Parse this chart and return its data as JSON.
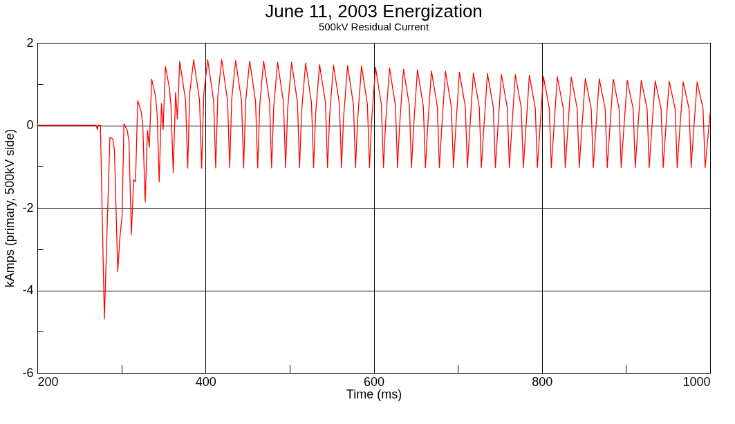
{
  "chart_data": {
    "type": "line",
    "title": "June 11, 2003 Energization",
    "subtitle": "500kV Residual Current",
    "xlabel": "Time (ms)",
    "ylabel": "kAmps (primary, 500kV side)",
    "xlim": [
      200,
      1000
    ],
    "xticks": [
      200,
      {
        "value": 300,
        "label": null
      },
      400,
      {
        "value": 500,
        "label": null
      },
      600,
      {
        "value": 700,
        "label": null
      },
      800,
      {
        "value": 900,
        "label": null
      },
      1000
    ],
    "ylim": [
      -6,
      2
    ],
    "yticks": [
      -6,
      {
        "value": -5,
        "label": null
      },
      -4,
      {
        "value": -3,
        "label": null
      },
      -2,
      {
        "value": -1,
        "label": null
      },
      0,
      {
        "value": 1,
        "label": null
      },
      2
    ],
    "grid": true,
    "line_style": "solid",
    "series": [
      {
        "color": "#ff0000",
        "x": [
          200,
          270,
          271.2,
          272.5,
          275,
          279.7,
          286.3,
          289.8,
          291.7,
          295.6,
          298.1,
          300.8,
          303.0,
          306.9,
          309.0,
          311.8,
          314.5,
          316.7,
          319.4,
          323.6,
          325.4,
          328.2,
          331.0,
          333.2,
          335.9,
          340.6,
          342.5,
          344.9,
          347.6,
          349.6,
          352.3,
          357.0,
          358.9,
          361.6,
          364.4,
          366.5,
          369.3,
          376.3,
          378.8,
          381.3,
          385.9,
          392.9,
          395.4,
          397.9,
          402.6,
          409.6,
          412.1,
          414.6,
          419.2,
          426.2,
          428.7,
          431.2,
          435.8,
          442.8,
          445.3,
          447.8,
          452.5,
          459.5,
          462.0,
          464.5,
          469.1,
          476.1,
          478.6,
          481.1,
          485.7,
          492.7,
          495.2,
          497.7,
          502.3,
          509.3,
          511.8,
          514.3,
          519.0,
          526.0,
          528.5,
          531.0,
          535.6,
          542.6,
          545.1,
          547.6,
          552.2,
          559.2,
          561.7,
          564.2,
          568.9,
          575.9,
          578.4,
          580.9,
          585.5,
          592.5,
          595.0,
          597.5,
          602.1,
          609.1,
          611.6,
          614.1,
          618.8,
          625.8,
          628.3,
          630.8,
          635.4,
          642.4,
          644.9,
          647.4,
          652.0,
          659.0,
          661.5,
          664.0,
          668.6,
          675.6,
          678.1,
          680.6,
          685.3,
          692.3,
          694.8,
          697.3,
          701.9,
          708.9,
          711.4,
          713.9,
          718.5,
          725.5,
          728.0,
          730.5,
          735.2,
          742.2,
          744.7,
          747.2,
          751.8,
          758.8,
          761.3,
          763.8,
          768.4,
          775.4,
          777.9,
          780.4,
          785.1,
          792.1,
          794.6,
          797.1,
          801.7,
          808.7,
          811.2,
          813.7,
          818.3,
          825.3,
          827.8,
          830.3,
          834.9,
          841.9,
          844.4,
          846.9,
          851.6,
          858.6,
          861.1,
          863.6,
          868.2,
          875.2,
          877.7,
          880.2,
          884.8,
          891.8,
          894.3,
          896.8,
          901.5,
          908.5,
          911.0,
          913.5,
          918.1,
          925.1,
          927.6,
          930.1,
          934.7,
          941.7,
          944.2,
          946.7,
          951.4,
          958.4,
          960.9,
          963.4,
          968.0,
          975.0,
          977.5,
          980.0,
          984.6,
          991.6,
          994.1,
          1000
        ],
        "values": [
          0,
          0,
          -0.1,
          0,
          0,
          -4.69,
          -0.29,
          -0.33,
          -0.61,
          -3.55,
          -2.73,
          -2.19,
          0.04,
          -0.12,
          -0.39,
          -2.65,
          -1.32,
          -1.37,
          0.6,
          0.32,
          0.0,
          -1.86,
          -0.12,
          -0.53,
          1.12,
          0.7,
          0.26,
          -1.37,
          0.53,
          -0.1,
          1.43,
          0.91,
          0.48,
          -1.15,
          0.8,
          0.15,
          1.55,
          0.6,
          -1.04,
          0.8,
          1.59,
          0.6,
          -1.04,
          0.75,
          1.59,
          0.6,
          -1.03,
          0.7,
          1.59,
          0.6,
          -1.03,
          0.65,
          1.57,
          0.6,
          -1.03,
          0.6,
          1.56,
          0.58,
          -1.03,
          0.5,
          1.56,
          0.58,
          -1.03,
          0.45,
          1.53,
          0.56,
          -1.02,
          0.4,
          1.53,
          0.56,
          -1.02,
          0.35,
          1.51,
          0.55,
          -1.02,
          0.3,
          1.47,
          0.55,
          -1.02,
          0.25,
          1.46,
          0.52,
          -1.02,
          0.2,
          1.45,
          0.5,
          -1.02,
          0.15,
          1.44,
          0.5,
          -1.02,
          0.1,
          1.41,
          0.5,
          -1.02,
          0.05,
          1.39,
          0.48,
          -1.02,
          0.0,
          1.36,
          0.48,
          -1.02,
          -0.05,
          1.35,
          0.46,
          -1.02,
          -0.1,
          1.32,
          0.46,
          -1.02,
          -0.15,
          1.31,
          0.45,
          -1.02,
          -0.15,
          1.29,
          0.45,
          -1.02,
          -0.2,
          1.27,
          0.44,
          -1.02,
          -0.2,
          1.26,
          0.44,
          -1.02,
          -0.2,
          1.24,
          0.43,
          -1.02,
          -0.2,
          1.23,
          0.43,
          -1.02,
          -0.25,
          1.21,
          0.42,
          -1.02,
          -0.25,
          1.19,
          0.42,
          -1.02,
          -0.25,
          1.18,
          0.42,
          -1.02,
          -0.25,
          1.17,
          0.41,
          -1.02,
          -0.25,
          1.14,
          0.41,
          -1.02,
          -0.25,
          1.13,
          0.4,
          -1.02,
          -0.25,
          1.12,
          0.4,
          -1.02,
          -0.25,
          1.09,
          0.4,
          -1.02,
          -0.25,
          1.09,
          0.4,
          -1.02,
          -0.25,
          1.08,
          0.4,
          -1.02,
          -0.25,
          1.07,
          0.4,
          -1.02,
          -0.25,
          1.05,
          0.4,
          -1.02,
          -0.25,
          1.05,
          0.4,
          -1.02,
          0.3
        ]
      }
    ]
  }
}
